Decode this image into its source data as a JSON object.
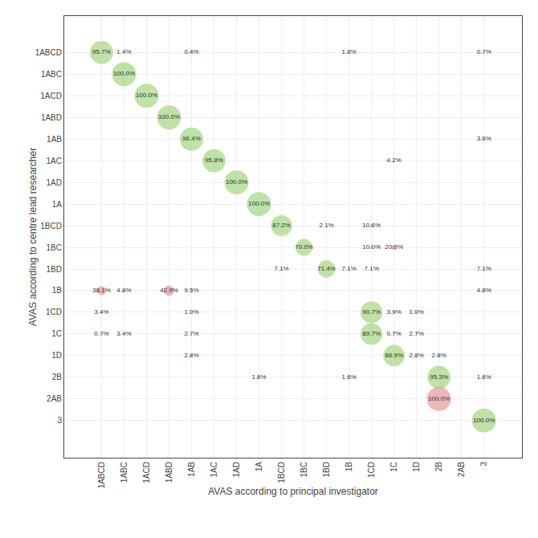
{
  "chart_data": {
    "type": "bubble",
    "xlabel": "AVAS according to principal investigator",
    "ylabel": "AVAS according to centre lead researcher",
    "x_categories": [
      "1ABCD",
      "1ABC",
      "1ACD",
      "1ABD",
      "1AB",
      "1AC",
      "1AD",
      "1A",
      "1BCD",
      "1BC",
      "1BD",
      "1B",
      "1CD",
      "1C",
      "1D",
      "2B",
      "2AB",
      "3"
    ],
    "y_categories": [
      "3",
      "2AB",
      "2B",
      "1D",
      "1C",
      "1CD",
      "1B",
      "1BD",
      "1BC",
      "1BCD",
      "1A",
      "1AD",
      "1AC",
      "1AB",
      "1ABD",
      "1ACD",
      "1ABC",
      "1ABCD"
    ],
    "x": [
      "1ABCD",
      "1ABC",
      "1AB",
      "1B",
      "3",
      "1ABC",
      "1ACD",
      "1ABD",
      "1AB",
      "3",
      "1AC",
      "1C",
      "1AD",
      "1A",
      "1BCD",
      "1BD",
      "1CD",
      "1BC",
      "1CD",
      "1C",
      "1BCD",
      "1BD",
      "1B",
      "1CD",
      "3",
      "1ABCD",
      "1ABC",
      "1ABD",
      "1AB",
      "3",
      "1ABCD",
      "1AB",
      "1CD",
      "1C",
      "1D",
      "1ABCD",
      "1ABC",
      "1AB",
      "1CD",
      "1C",
      "1D",
      "1AB",
      "1C",
      "1D",
      "2B",
      "1A",
      "1B",
      "2B",
      "3",
      "2B",
      "3"
    ],
    "y": [
      "1ABCD",
      "1ABCD",
      "1ABCD",
      "1ABCD",
      "1ABCD",
      "1ABC",
      "1ACD",
      "1ABD",
      "1AB",
      "1AB",
      "1AC",
      "1AC",
      "1AD",
      "1A",
      "1BCD",
      "1BCD",
      "1BCD",
      "1BC",
      "1BC",
      "1BC",
      "1BD",
      "1BD",
      "1BD",
      "1BD",
      "1BD",
      "1B",
      "1B",
      "1B",
      "1B",
      "1B",
      "1CD",
      "1CD",
      "1CD",
      "1CD",
      "1CD",
      "1C",
      "1C",
      "1C",
      "1C",
      "1C",
      "1C",
      "1D",
      "1D",
      "1D",
      "1D",
      "2B",
      "2B",
      "2B",
      "2B",
      "2AB",
      "3"
    ],
    "values": [
      95.7,
      1.4,
      0.4,
      1.8,
      0.7,
      100.0,
      100.0,
      100.0,
      96.4,
      3.6,
      95.8,
      4.2,
      100.0,
      100.0,
      87.2,
      2.1,
      10.6,
      70.0,
      10.0,
      20.0,
      7.1,
      71.4,
      7.1,
      7.1,
      7.1,
      38.1,
      4.8,
      42.9,
      9.5,
      4.8,
      3.4,
      1.0,
      90.7,
      3.9,
      1.0,
      0.7,
      3.4,
      2.7,
      89.7,
      0.7,
      2.7,
      2.8,
      88.9,
      2.8,
      2.8,
      1.6,
      1.6,
      95.3,
      1.6,
      100.0,
      100.0
    ],
    "value_labels": [
      "95.7%",
      "1.4%",
      "0.4%",
      "1.8%",
      "0.7%",
      "100.0%",
      "100.0%",
      "100.0%",
      "96.4%",
      "3.6%",
      "95.8%",
      "4.2%",
      "100.0%",
      "100.0%",
      "87.2%",
      "2.1%",
      "10.6%",
      "70.0%",
      "10.0%",
      "20.0%",
      "7.1%",
      "71.4%",
      "7.1%",
      "7.1%",
      "7.1%",
      "38.1%",
      "4.8%",
      "42.9%",
      "9.5%",
      "4.8%",
      "3.4%",
      "1.0%",
      "90.7%",
      "3.9%",
      "1.0%",
      "0.7%",
      "3.4%",
      "2.7%",
      "89.7%",
      "0.7%",
      "2.7%",
      "2.8%",
      "88.9%",
      "2.8%",
      "2.8%",
      "1.6%",
      "1.6%",
      "95.3%",
      "1.6%",
      "100.0%",
      "100.0%"
    ],
    "colors": [
      "#a8d88a",
      "#e8a0a0",
      "#e8a0a0",
      "#e8a0a0",
      "#e8a0a0",
      "#a8d88a",
      "#a8d88a",
      "#a8d88a",
      "#a8d88a",
      "#e8a0a0",
      "#a8d88a",
      "#e8a0a0",
      "#a8d88a",
      "#a8d88a",
      "#a8d88a",
      "#e8a0a0",
      "#e8a0a0",
      "#a8d88a",
      "#e8a0a0",
      "#e8a0a0",
      "#e8a0a0",
      "#a8d88a",
      "#e8a0a0",
      "#e8a0a0",
      "#e8a0a0",
      "#e8a0a0",
      "#e8a0a0",
      "#e8a0a0",
      "#e8a0a0",
      "#e8a0a0",
      "#e8a0a0",
      "#e8a0a0",
      "#a8d88a",
      "#e8a0a0",
      "#e8a0a0",
      "#e8a0a0",
      "#e8a0a0",
      "#e8a0a0",
      "#a8d88a",
      "#e8a0a0",
      "#e8a0a0",
      "#e8a0a0",
      "#a8d88a",
      "#e8a0a0",
      "#e8a0a0",
      "#e8a0a0",
      "#e8a0a0",
      "#a8d88a",
      "#e8a0a0",
      "#e8a0a0",
      "#a8d88a"
    ],
    "data_labels": true,
    "grid": true
  }
}
